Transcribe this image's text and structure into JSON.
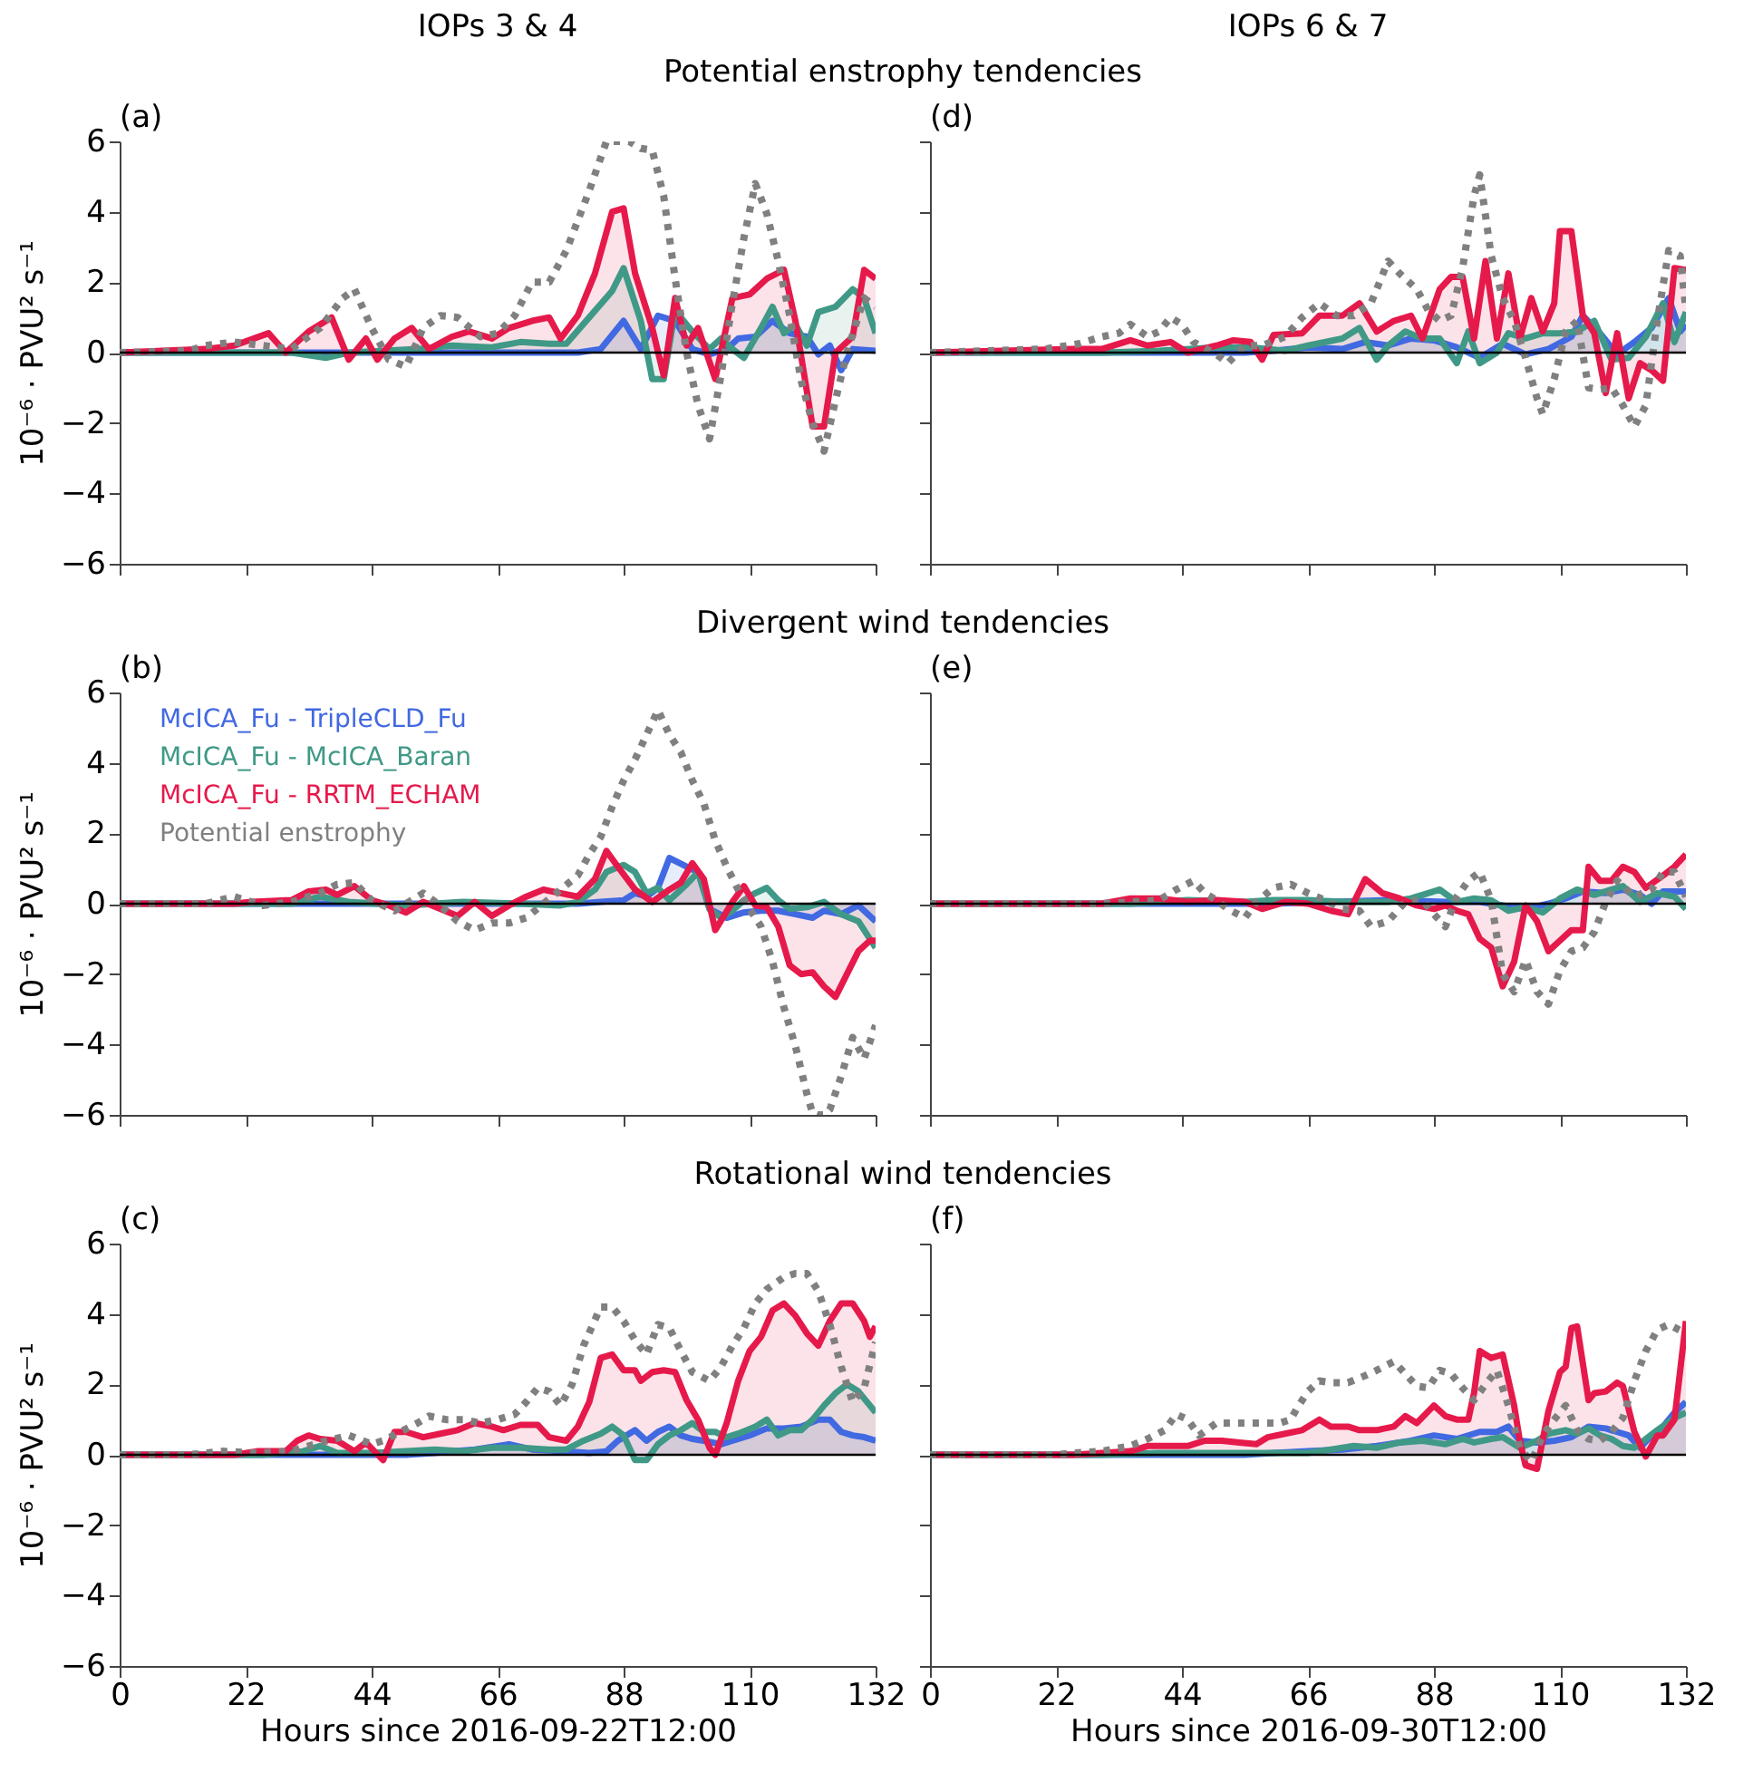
{
  "chart_data": [
    {
      "type": "line",
      "title": "IOPs 3 & 4",
      "subtitle": "Potential enstrophy tendencies",
      "annotations": [
        "(a)"
      ],
      "ylabel": "10⁻⁶ · PVU² s⁻¹",
      "xlim": [
        0,
        132
      ],
      "xticks": [
        0,
        22,
        44,
        66,
        88,
        110,
        132
      ],
      "ylim": [
        -6,
        6
      ],
      "yticks": [
        -6,
        -4,
        -2,
        0,
        2,
        4,
        6
      ],
      "tick_labels": "y",
      "ref_lines": [
        {
          "axis": "y",
          "value": 0,
          "color": "#000000"
        }
      ],
      "series": [
        {
          "type": "area",
          "color": "#4169e1",
          "x": [
            0,
            80,
            84,
            88,
            91,
            94,
            97,
            100,
            103,
            106,
            108,
            111,
            114,
            117,
            120,
            122,
            124,
            126,
            128,
            132
          ],
          "values": [
            0,
            0,
            0.1,
            0.9,
            0.1,
            1.05,
            0.9,
            0.1,
            -0.05,
            0.1,
            0.4,
            0.45,
            0.9,
            0.55,
            0.45,
            -0.05,
            0.2,
            -0.5,
            0.1,
            0.05
          ]
        },
        {
          "type": "area",
          "color": "#3f9986",
          "x": [
            0,
            30,
            36,
            40,
            52,
            58,
            65,
            70,
            75,
            78,
            82,
            86,
            88,
            91,
            93,
            95,
            97,
            100,
            103,
            105,
            107,
            109,
            112,
            114,
            116,
            118,
            120,
            122,
            125,
            128,
            130,
            132
          ],
          "values": [
            0,
            0,
            -0.15,
            0,
            0.1,
            0.2,
            0.15,
            0.3,
            0.25,
            0.25,
            1.0,
            1.75,
            2.4,
            0.9,
            -0.75,
            -0.75,
            1.2,
            0.6,
            0.1,
            0.4,
            0.1,
            -0.15,
            0.7,
            1.3,
            0.55,
            0.8,
            0.2,
            1.15,
            1.3,
            1.8,
            1.55,
            0.55
          ]
        },
        {
          "type": "area",
          "color": "#e6194b",
          "x": [
            0,
            15,
            20,
            26,
            29,
            33,
            37,
            40,
            43,
            45,
            48,
            51,
            54,
            58,
            61,
            65,
            68,
            72,
            75,
            77,
            80,
            83,
            86,
            88,
            90,
            93,
            95,
            97,
            99,
            101,
            104,
            107,
            110,
            113,
            116,
            118,
            121,
            123,
            125,
            128,
            130,
            132
          ],
          "values": [
            0,
            0.1,
            0.2,
            0.55,
            0,
            0.6,
            1.0,
            -0.2,
            0.4,
            -0.2,
            0.4,
            0.7,
            0.1,
            0.45,
            0.6,
            0.4,
            0.7,
            0.9,
            1.0,
            0.4,
            1.05,
            2.25,
            4.0,
            4.1,
            2.25,
            0.7,
            -0.65,
            1.55,
            0.2,
            0.7,
            -0.75,
            1.55,
            1.65,
            2.1,
            2.35,
            0.9,
            -2.1,
            -2.1,
            0,
            0.45,
            2.35,
            2.1
          ]
        },
        {
          "type": "line",
          "line_style": "dotted",
          "color": "#808080",
          "x": [
            0,
            12,
            15,
            20,
            25,
            30,
            35,
            39,
            41,
            44,
            47,
            50,
            53,
            56,
            59,
            63,
            66,
            69,
            72,
            75,
            78,
            82,
            85,
            87,
            89,
            91,
            93,
            95,
            97,
            99,
            101,
            103,
            105,
            107,
            109,
            111,
            113,
            115,
            117,
            119,
            121,
            123,
            125,
            127,
            130,
            132
          ],
          "values": [
            0,
            0.05,
            0.2,
            0.3,
            0.2,
            0.1,
            0.7,
            1.55,
            1.8,
            0.7,
            -0.2,
            -0.4,
            0.7,
            1.05,
            1.0,
            0.45,
            0.55,
            1.05,
            2.0,
            2.0,
            2.9,
            4.6,
            6.0,
            6.0,
            6.0,
            5.8,
            5.75,
            4.45,
            2.1,
            0,
            -1.5,
            -2.45,
            -0.65,
            1.4,
            3.25,
            4.8,
            3.95,
            2.6,
            1.05,
            -0.8,
            -2.0,
            -2.8,
            -1.35,
            0,
            1.55,
            1.3
          ]
        }
      ]
    },
    {
      "type": "line",
      "title": "IOPs 6 & 7",
      "annotations": [
        "(d)"
      ],
      "xlim": [
        0,
        132
      ],
      "xticks": [
        0,
        22,
        44,
        66,
        88,
        110,
        132
      ],
      "ylim": [
        -6,
        6
      ],
      "yticks": [
        -6,
        -4,
        -2,
        0,
        2,
        4,
        6
      ],
      "tick_labels": false,
      "ref_lines": [
        {
          "axis": "y",
          "value": 0,
          "color": "#000000"
        }
      ],
      "series": [
        {
          "type": "area",
          "color": "#4169e1",
          "x": [
            0,
            55,
            60,
            66,
            72,
            76,
            80,
            84,
            88,
            92,
            96,
            100,
            104,
            108,
            112,
            114,
            117,
            120,
            123,
            126,
            129,
            131,
            132
          ],
          "values": [
            0,
            0,
            0.05,
            0.15,
            0.1,
            0.3,
            0.2,
            0.4,
            0.35,
            0.15,
            -0.15,
            0.25,
            -0.05,
            0.1,
            0.45,
            1.05,
            0.55,
            -0.05,
            0.3,
            0.7,
            1.55,
            0.6,
            0.8
          ]
        },
        {
          "type": "area",
          "color": "#3f9986",
          "x": [
            0,
            30,
            40,
            50,
            56,
            62,
            66,
            72,
            75,
            78,
            80,
            83,
            86,
            89,
            92,
            94,
            96,
            99,
            101,
            104,
            107,
            110,
            113,
            116,
            119,
            122,
            125,
            128,
            130,
            132
          ],
          "values": [
            0,
            0,
            0.05,
            0.15,
            0.15,
            0.05,
            0.2,
            0.4,
            0.7,
            -0.2,
            0.2,
            0.6,
            0.4,
            0.4,
            -0.3,
            0.6,
            -0.3,
            0,
            0.55,
            0.4,
            0.55,
            0.55,
            0.6,
            0.9,
            -0.2,
            -0.15,
            0.45,
            1.4,
            0.3,
            1.15
          ]
        },
        {
          "type": "area",
          "color": "#e6194b",
          "x": [
            0,
            25,
            30,
            35,
            38,
            42,
            45,
            50,
            53,
            56,
            58,
            60,
            65,
            68,
            72,
            75,
            78,
            81,
            84,
            86,
            89,
            91,
            93,
            95,
            97,
            99,
            101,
            103,
            105,
            107,
            109,
            110,
            112,
            114,
            116,
            118,
            120,
            122,
            124,
            126,
            128,
            130,
            132
          ],
          "values": [
            0,
            0.1,
            0.1,
            0.35,
            0.2,
            0.3,
            0,
            0.2,
            0.35,
            0.3,
            -0.2,
            0.5,
            0.55,
            1.05,
            1.05,
            1.4,
            0.6,
            0.9,
            1.05,
            0.4,
            1.8,
            2.15,
            2.15,
            0.4,
            2.6,
            0.4,
            2.25,
            0.4,
            1.55,
            0.6,
            1.4,
            3.45,
            3.45,
            1.05,
            0.55,
            -1.15,
            0.55,
            -1.3,
            -0.3,
            -0.5,
            -0.8,
            2.4,
            2.35
          ]
        },
        {
          "type": "line",
          "line_style": "dotted",
          "color": "#808080",
          "x": [
            0,
            20,
            26,
            30,
            33,
            35,
            38,
            40,
            42,
            44,
            46,
            50,
            52,
            55,
            58,
            62,
            65,
            68,
            71,
            74,
            77,
            80,
            82,
            85,
            87,
            89,
            91,
            93,
            95,
            96,
            98,
            100,
            102,
            104,
            106,
            107,
            109,
            111,
            113,
            115,
            117,
            119,
            121,
            123,
            125,
            127,
            129,
            131,
            132
          ],
          "values": [
            0,
            0.1,
            0.25,
            0.45,
            0.55,
            0.8,
            0.45,
            0.6,
            1.0,
            0.8,
            0.3,
            -0.05,
            -0.3,
            0.2,
            0.2,
            0.45,
            1.0,
            1.4,
            1.05,
            1.05,
            1.4,
            2.6,
            2.25,
            1.8,
            1.2,
            0.9,
            1.05,
            2.4,
            4.45,
            5.05,
            2.75,
            1.55,
            0.9,
            -0.15,
            -1.3,
            -1.75,
            -0.75,
            0.6,
            0.9,
            -1.0,
            -1.05,
            -1.0,
            -1.5,
            -2.1,
            -1.5,
            0.9,
            2.9,
            2.75,
            1.2
          ]
        }
      ]
    },
    {
      "type": "line",
      "subtitle": "Divergent wind tendencies",
      "annotations": [
        "(b)"
      ],
      "ylabel": "10⁻⁶ · PVU² s⁻¹",
      "xlim": [
        0,
        132
      ],
      "xticks": [
        0,
        22,
        44,
        66,
        88,
        110,
        132
      ],
      "ylim": [
        -6,
        6
      ],
      "yticks": [
        -6,
        -4,
        -2,
        0,
        2,
        4,
        6
      ],
      "tick_labels": "y",
      "ref_lines": [
        {
          "axis": "y",
          "value": 0,
          "color": "#000000"
        }
      ],
      "series": [
        {
          "type": "area",
          "color": "#4169e1",
          "x": [
            0,
            80,
            84,
            88,
            90,
            92,
            94,
            96,
            99,
            101,
            103,
            106,
            109,
            112,
            115,
            118,
            121,
            123,
            126,
            129,
            132
          ],
          "values": [
            0,
            0,
            0.05,
            0.1,
            0.3,
            0.2,
            0.45,
            1.3,
            1.05,
            0.9,
            -0.15,
            -0.4,
            -0.25,
            -0.2,
            -0.2,
            -0.3,
            -0.4,
            -0.2,
            -0.3,
            -0.05,
            -0.5
          ]
        },
        {
          "type": "area",
          "color": "#3f9986",
          "x": [
            0,
            30,
            35,
            40,
            50,
            60,
            70,
            77,
            80,
            83,
            85,
            88,
            90,
            92,
            94,
            96,
            99,
            101,
            103,
            105,
            107,
            109,
            111,
            113,
            115,
            117,
            120,
            123,
            126,
            129,
            132
          ],
          "values": [
            0,
            0,
            0.2,
            0.05,
            -0.05,
            0.05,
            0,
            -0.05,
            0.05,
            0.4,
            0.9,
            1.1,
            0.9,
            0.3,
            0.45,
            0.1,
            0.55,
            0.9,
            -0.15,
            -0.4,
            -0.2,
            0.1,
            0.3,
            0.45,
            0.1,
            -0.15,
            -0.1,
            0.05,
            -0.3,
            -0.5,
            -1.25
          ]
        },
        {
          "type": "area",
          "color": "#e6194b",
          "x": [
            0,
            20,
            23,
            30,
            33,
            36,
            38,
            41,
            44,
            47,
            50,
            53,
            56,
            59,
            62,
            65,
            68,
            71,
            74,
            77,
            80,
            83,
            85,
            87,
            90,
            93,
            96,
            98,
            100,
            102,
            104,
            107,
            109,
            111,
            113,
            115,
            117,
            119,
            121,
            123,
            125,
            127,
            129,
            131,
            132
          ],
          "values": [
            0,
            0,
            0.05,
            0.1,
            0.35,
            0.4,
            0.25,
            0.5,
            0.1,
            -0.05,
            -0.25,
            0.05,
            -0.15,
            -0.35,
            0.05,
            -0.35,
            -0.05,
            0.2,
            0.4,
            0.3,
            0.2,
            0.7,
            1.5,
            1.05,
            0.4,
            0.05,
            0.4,
            0.6,
            1.15,
            0.7,
            -0.75,
            0.05,
            0.5,
            -0.05,
            -0.1,
            -0.65,
            -1.75,
            -2.0,
            -1.95,
            -2.35,
            -2.65,
            -2.0,
            -1.35,
            -1.05,
            -1.05
          ]
        },
        {
          "type": "line",
          "line_style": "dotted",
          "color": "#808080",
          "x": [
            0,
            15,
            20,
            25,
            30,
            35,
            38,
            41,
            44,
            48,
            51,
            53,
            56,
            59,
            62,
            65,
            68,
            71,
            74,
            77,
            80,
            82,
            84,
            86,
            88,
            90,
            92,
            94,
            96,
            98,
            100,
            102,
            104,
            106,
            108,
            110,
            112,
            114,
            116,
            118,
            120,
            121,
            122,
            123,
            124,
            126,
            128,
            130,
            132
          ],
          "values": [
            0,
            0,
            0.2,
            -0.05,
            0.05,
            0.3,
            0.55,
            0.6,
            0.1,
            -0.2,
            0.1,
            0.3,
            -0.05,
            -0.5,
            -0.75,
            -0.55,
            -0.55,
            -0.4,
            0,
            0.4,
            0.8,
            1.4,
            1.9,
            2.75,
            3.5,
            4.1,
            4.8,
            5.5,
            4.8,
            4.3,
            3.5,
            2.85,
            1.8,
            1.05,
            0.4,
            -0.15,
            -0.65,
            -1.65,
            -2.95,
            -4.05,
            -5.4,
            -5.95,
            -6,
            -6,
            -5.85,
            -4.9,
            -3.8,
            -4.4,
            -3.45
          ]
        }
      ]
    },
    {
      "type": "line",
      "xlim": [
        0,
        132
      ],
      "xticks": [
        0,
        22,
        44,
        66,
        88,
        110,
        132
      ],
      "ylim": [
        -6,
        6
      ],
      "yticks": [
        -6,
        -4,
        -2,
        0,
        2,
        4,
        6
      ],
      "tick_labels": false,
      "legend": "top left",
      "annotations": [
        "(e)"
      ],
      "ref_lines": [
        {
          "axis": "y",
          "value": 0,
          "color": "#000000"
        }
      ],
      "series": [
        {
          "type": "area",
          "name": "McICA_Fu - TripleCLD_Fu",
          "color": "#4169e1",
          "x": [
            0,
            60,
            70,
            80,
            90,
            96,
            100,
            104,
            108,
            111,
            114,
            118,
            121,
            124,
            126,
            128,
            132
          ],
          "values": [
            0,
            0,
            0.05,
            0.1,
            0.05,
            0.05,
            -0.05,
            -0.15,
            0,
            0.15,
            0.35,
            0.3,
            0.4,
            0.25,
            0,
            0.35,
            0.35
          ]
        },
        {
          "type": "area",
          "name": "McICA_Fu - McICA_Baran",
          "color": "#3f9986",
          "x": [
            0,
            35,
            45,
            55,
            60,
            66,
            72,
            76,
            80,
            84,
            87,
            89,
            92,
            95,
            98,
            101,
            104,
            107,
            110,
            113,
            116,
            119,
            121,
            124,
            127,
            130,
            132
          ],
          "values": [
            0,
            0,
            0.1,
            0.05,
            0.1,
            0.1,
            0.05,
            0.05,
            0.05,
            0.15,
            0.3,
            0.4,
            0.05,
            0.15,
            0.1,
            -0.2,
            -0.1,
            -0.25,
            0.15,
            0.4,
            0.25,
            0.4,
            0.5,
            0.05,
            0.3,
            0.2,
            -0.15
          ]
        },
        {
          "type": "area",
          "name": "McICA_Fu - RRTM_ECHAM",
          "color": "#e6194b",
          "x": [
            0,
            30,
            35,
            40,
            45,
            50,
            55,
            58,
            62,
            66,
            70,
            73,
            76,
            79,
            82,
            85,
            88,
            90,
            92,
            94,
            96,
            98,
            100,
            102,
            104,
            106,
            108,
            110,
            112,
            114,
            115,
            117,
            119,
            121,
            123,
            125,
            128,
            130,
            132
          ],
          "values": [
            0,
            0,
            0.15,
            0.15,
            0.05,
            0.1,
            0.05,
            -0.15,
            0.05,
            0,
            -0.2,
            -0.3,
            0.7,
            0.3,
            0.15,
            -0.05,
            -0.15,
            -0.05,
            -0.2,
            -0.3,
            -1.0,
            -1.25,
            -2.35,
            -1.65,
            -0.05,
            -0.5,
            -1.35,
            -1.05,
            -0.75,
            -0.75,
            1.05,
            0.65,
            0.65,
            1.05,
            0.9,
            0.45,
            0.8,
            1.05,
            1.4
          ]
        },
        {
          "type": "line",
          "name": "Potential enstrophy",
          "line_style": "dotted",
          "color": "#808080",
          "x": [
            0,
            30,
            35,
            40,
            43,
            46,
            48,
            50,
            52,
            55,
            57,
            60,
            63,
            66,
            69,
            72,
            75,
            77,
            80,
            83,
            86,
            88,
            90,
            92,
            94,
            96,
            98,
            100,
            102,
            104,
            106,
            108,
            110,
            112,
            114,
            116,
            118,
            120,
            123,
            126,
            128,
            130,
            132
          ],
          "values": [
            0,
            0,
            0.05,
            0.1,
            0.4,
            0.65,
            0.3,
            0.1,
            -0.15,
            -0.4,
            0.05,
            0.45,
            0.55,
            0.3,
            0.1,
            -0.15,
            -0.2,
            -0.65,
            -0.5,
            0.05,
            0.1,
            -0.3,
            -0.65,
            0.2,
            0.65,
            0.9,
            0.1,
            -2.0,
            -2.5,
            -1.6,
            -2.5,
            -2.85,
            -1.9,
            -1.35,
            -1.25,
            -0.8,
            0.05,
            0.65,
            0.2,
            0.4,
            0.9,
            0.9,
            0.2
          ]
        }
      ]
    },
    {
      "type": "line",
      "subtitle": "Rotational wind tendencies",
      "annotations": [
        "(c)"
      ],
      "xlabel": "Hours since 2016-09-22T12:00",
      "ylabel": "10⁻⁶ · PVU² s⁻¹",
      "xlim": [
        0,
        132
      ],
      "xticks": [
        0,
        22,
        44,
        66,
        88,
        110,
        132
      ],
      "ylim": [
        -6,
        6
      ],
      "yticks": [
        -6,
        -4,
        -2,
        0,
        2,
        4,
        6
      ],
      "ref_lines": [
        {
          "axis": "y",
          "value": 0,
          "color": "#000000"
        }
      ],
      "series": [
        {
          "type": "area",
          "color": "#4169e1",
          "x": [
            0,
            50,
            55,
            62,
            68,
            72,
            78,
            82,
            85,
            87,
            90,
            92,
            94,
            96,
            98,
            100,
            102,
            105,
            107,
            110,
            113,
            116,
            119,
            122,
            124,
            126,
            128,
            130,
            132
          ],
          "values": [
            0,
            0,
            0.05,
            0.15,
            0.3,
            0.15,
            0.1,
            0.05,
            0.1,
            0.4,
            0.7,
            0.4,
            0.65,
            0.8,
            0.55,
            0.45,
            0.4,
            0.3,
            0.4,
            0.55,
            0.75,
            0.75,
            0.8,
            1.0,
            1.0,
            0.65,
            0.55,
            0.5,
            0.4
          ]
        },
        {
          "type": "area",
          "color": "#3f9986",
          "x": [
            0,
            25,
            28,
            32,
            35,
            38,
            44,
            50,
            55,
            60,
            65,
            70,
            75,
            78,
            81,
            84,
            86,
            88,
            90,
            92,
            94,
            96,
            98,
            100,
            102,
            104,
            106,
            108,
            111,
            113,
            115,
            117,
            119,
            121,
            123,
            125,
            127,
            129,
            132
          ],
          "values": [
            0,
            0,
            0.05,
            0.1,
            0.25,
            0.05,
            0.05,
            0.1,
            0.15,
            0.1,
            0.2,
            0.2,
            0.15,
            0.15,
            0.4,
            0.6,
            0.8,
            0.55,
            -0.15,
            -0.15,
            0.3,
            0.55,
            0.7,
            0.9,
            0.65,
            0.65,
            0.5,
            0.6,
            0.8,
            1.0,
            0.55,
            0.7,
            0.7,
            1.0,
            1.4,
            1.75,
            2.0,
            1.8,
            1.2
          ]
        },
        {
          "type": "area",
          "color": "#e6194b",
          "x": [
            0,
            20,
            24,
            29,
            31,
            33,
            35,
            38,
            41,
            43,
            46,
            48,
            50,
            53,
            56,
            59,
            62,
            65,
            67,
            70,
            73,
            75,
            78,
            80,
            82,
            84,
            86,
            88,
            90,
            91,
            93,
            95,
            97,
            99,
            101,
            103,
            104,
            106,
            108,
            110,
            112,
            114,
            116,
            118,
            120,
            122,
            124,
            126,
            128,
            130,
            131,
            132
          ],
          "values": [
            0,
            0,
            0.1,
            0.1,
            0.4,
            0.55,
            0.45,
            0.4,
            0.1,
            0.35,
            -0.15,
            0.65,
            0.65,
            0.5,
            0.6,
            0.7,
            0.9,
            0.8,
            0.7,
            0.85,
            0.85,
            0.5,
            0.4,
            0.8,
            1.5,
            2.75,
            2.85,
            2.4,
            2.4,
            2.1,
            2.35,
            2.4,
            2.35,
            1.55,
            1.0,
            0.2,
            0,
            0.9,
            2.1,
            2.95,
            3.35,
            4.1,
            4.3,
            3.95,
            3.45,
            3.1,
            3.8,
            4.3,
            4.3,
            3.8,
            3.35,
            3.65
          ]
        },
        {
          "type": "line",
          "line_style": "dotted",
          "color": "#808080",
          "x": [
            0,
            12,
            18,
            24,
            30,
            35,
            40,
            44,
            46,
            49,
            52,
            54,
            57,
            60,
            63,
            66,
            69,
            71,
            73,
            75,
            77,
            79,
            81,
            84,
            86,
            88,
            90,
            92,
            94,
            96,
            98,
            100,
            103,
            105,
            107,
            109,
            111,
            113,
            116,
            118,
            120,
            122,
            124,
            126,
            128,
            130,
            132
          ],
          "values": [
            0,
            0,
            0.1,
            0.05,
            0.1,
            0.35,
            0.55,
            0.3,
            0.4,
            0.65,
            0.9,
            1.1,
            1.0,
            1.0,
            0.9,
            1.0,
            1.15,
            1.5,
            1.9,
            1.8,
            1.4,
            2.0,
            3.1,
            4.2,
            4.2,
            3.8,
            3.25,
            2.85,
            3.7,
            3.6,
            2.95,
            2.35,
            2.1,
            2.5,
            3.1,
            3.6,
            4.3,
            4.7,
            5.05,
            5.15,
            5.15,
            4.65,
            3.7,
            2.5,
            1.5,
            1.9,
            3.2
          ]
        }
      ]
    },
    {
      "type": "line",
      "annotations": [
        "(f)"
      ],
      "xlabel": "Hours since 2016-09-30T12:00",
      "xlim": [
        0,
        132
      ],
      "xticks": [
        0,
        22,
        44,
        66,
        88,
        110,
        132
      ],
      "ylim": [
        -6,
        6
      ],
      "yticks": [
        -6,
        -4,
        -2,
        0,
        2,
        4,
        6
      ],
      "tick_labels": "x",
      "ref_lines": [
        {
          "axis": "y",
          "value": 0,
          "color": "#000000"
        }
      ],
      "series": [
        {
          "type": "area",
          "color": "#4169e1",
          "x": [
            0,
            55,
            60,
            66,
            72,
            78,
            84,
            88,
            92,
            96,
            99,
            101,
            103,
            106,
            109,
            112,
            115,
            118,
            120,
            122,
            124,
            126,
            128,
            130,
            132
          ],
          "values": [
            0,
            0,
            0.05,
            0.1,
            0.15,
            0.25,
            0.4,
            0.55,
            0.45,
            0.65,
            0.65,
            0.8,
            0.4,
            0.35,
            0.4,
            0.5,
            0.8,
            0.75,
            0.65,
            0.55,
            0.2,
            0.55,
            0.8,
            1.2,
            1.5
          ]
        },
        {
          "type": "area",
          "color": "#3f9986",
          "x": [
            0,
            30,
            40,
            50,
            60,
            66,
            70,
            74,
            78,
            82,
            86,
            90,
            93,
            95,
            98,
            100,
            103,
            106,
            108,
            111,
            113,
            115,
            117,
            119,
            121,
            123,
            125,
            127,
            130,
            132
          ],
          "values": [
            0,
            0,
            0.05,
            0.05,
            0.05,
            0.05,
            0.15,
            0.25,
            0.2,
            0.35,
            0.4,
            0.3,
            0.45,
            0.35,
            0.45,
            0.5,
            0.2,
            0.4,
            0.6,
            0.7,
            0.6,
            0.75,
            0.55,
            0.45,
            0.25,
            0.2,
            0.45,
            0.7,
            1.05,
            1.2
          ]
        },
        {
          "type": "area",
          "color": "#e6194b",
          "x": [
            0,
            25,
            30,
            35,
            38,
            42,
            45,
            48,
            51,
            54,
            57,
            59,
            62,
            65,
            68,
            70,
            73,
            75,
            78,
            81,
            83,
            85,
            88,
            90,
            92,
            94,
            95,
            96,
            98,
            100,
            102,
            103,
            104,
            106,
            108,
            110,
            111,
            112,
            113,
            115,
            116,
            118,
            120,
            121,
            123,
            125,
            127,
            128,
            130,
            132
          ],
          "values": [
            0,
            0,
            0.05,
            0.1,
            0.25,
            0.25,
            0.25,
            0.4,
            0.4,
            0.35,
            0.3,
            0.5,
            0.6,
            0.7,
            1.0,
            0.8,
            0.8,
            0.7,
            0.7,
            0.8,
            1.1,
            0.9,
            1.4,
            1.1,
            1.0,
            1.0,
            1.75,
            2.95,
            2.75,
            2.85,
            1.4,
            0.4,
            -0.3,
            -0.4,
            1.25,
            2.35,
            2.5,
            3.6,
            3.65,
            1.55,
            1.75,
            1.8,
            2.05,
            1.95,
            0.65,
            -0.05,
            0.55,
            0.55,
            1.0,
            3.8
          ]
        },
        {
          "type": "line",
          "line_style": "dotted",
          "color": "#808080",
          "x": [
            0,
            22,
            25,
            30,
            35,
            38,
            41,
            43,
            45,
            47,
            50,
            53,
            57,
            61,
            63,
            64,
            66,
            68,
            70,
            73,
            76,
            78,
            81,
            83,
            85,
            87,
            89,
            91,
            93,
            95,
            97,
            99,
            101,
            103,
            105,
            107,
            109,
            111,
            113,
            115,
            117,
            119,
            121,
            123,
            125,
            127,
            129,
            132
          ],
          "values": [
            0,
            0,
            0.05,
            0.1,
            0.25,
            0.45,
            0.7,
            1.15,
            1.0,
            0.55,
            0.9,
            0.9,
            0.9,
            0.9,
            1.0,
            1.3,
            1.8,
            2.1,
            2.05,
            2.05,
            2.25,
            2.4,
            2.65,
            2.3,
            1.95,
            1.9,
            2.4,
            2.3,
            1.9,
            1.55,
            2.0,
            2.4,
            1.4,
            0.2,
            -0.2,
            0.55,
            1.0,
            1.4,
            0.7,
            0.45,
            0.4,
            0.65,
            1.05,
            2.1,
            2.95,
            3.55,
            3.7,
            3.45
          ]
        }
      ]
    }
  ]
}
